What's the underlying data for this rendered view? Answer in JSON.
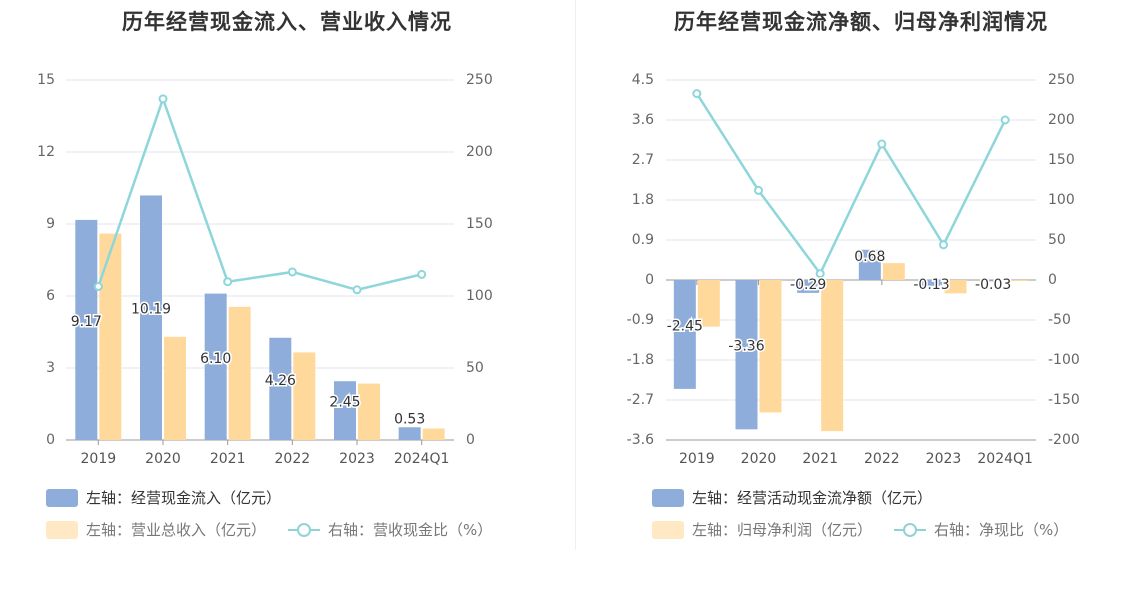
{
  "colors": {
    "blue": "#8eadda",
    "orange": "#ffd99b",
    "teal": "#8dd6da",
    "grid": "#e3e6f2",
    "axis": "#999999"
  },
  "chart_data": [
    {
      "type": "bar",
      "title": "历年经营现金流入、营业收入情况",
      "categories": [
        "2019",
        "2020",
        "2021",
        "2022",
        "2023",
        "2024Q1"
      ],
      "left_axis": {
        "ylim": [
          0,
          15
        ],
        "ticks": [
          "0",
          "3",
          "6",
          "9",
          "12",
          "15"
        ]
      },
      "right_axis": {
        "ylim": [
          0,
          250
        ],
        "ticks": [
          "0",
          "50",
          "100",
          "150",
          "200",
          "250"
        ]
      },
      "series": [
        {
          "name": "左轴：经营现金流入（亿元）",
          "type": "bar",
          "axis": "left",
          "color": "#8eadda",
          "values": [
            9.17,
            10.19,
            6.1,
            4.26,
            2.45,
            0.53
          ],
          "labels": [
            "9.17",
            "10.19",
            "6.10",
            "4.26",
            "2.45",
            "0.53"
          ]
        },
        {
          "name": "左轴：营业总收入（亿元）",
          "type": "bar",
          "axis": "left",
          "color": "#ffd99b",
          "values": [
            8.6,
            4.3,
            5.55,
            3.65,
            2.35,
            0.48
          ]
        },
        {
          "name": "右轴：营收现金比（%）",
          "type": "line",
          "axis": "right",
          "color": "#8dd6da",
          "values": [
            106.6,
            236.9,
            109.9,
            116.7,
            104.3,
            115.0
          ]
        }
      ],
      "legend_position": "bottom-left"
    },
    {
      "type": "bar",
      "title": "历年经营现金流净额、归母净利润情况",
      "categories": [
        "2019",
        "2020",
        "2021",
        "2022",
        "2023",
        "2024Q1"
      ],
      "left_axis": {
        "ylim": [
          -3.6,
          4.5
        ],
        "ticks": [
          "-3.6",
          "-2.7",
          "-1.8",
          "-0.9",
          "0",
          "0.9",
          "1.8",
          "2.7",
          "3.6",
          "4.5"
        ]
      },
      "right_axis": {
        "ylim": [
          -200,
          250
        ],
        "ticks": [
          "-200",
          "-150",
          "-100",
          "-50",
          "0",
          "50",
          "100",
          "150",
          "200",
          "250"
        ]
      },
      "series": [
        {
          "name": "左轴：经营活动现金流净额（亿元）",
          "type": "bar",
          "axis": "left",
          "color": "#8eadda",
          "values": [
            -2.45,
            -3.36,
            -0.29,
            0.68,
            -0.13,
            -0.03
          ],
          "labels": [
            "-2.45",
            "-3.36",
            "-0.29",
            "0.68",
            "-0.13",
            "-0.03"
          ]
        },
        {
          "name": "左轴：归母净利润（亿元）",
          "type": "bar",
          "axis": "left",
          "color": "#ffd99b",
          "values": [
            -1.05,
            -2.98,
            -3.4,
            0.38,
            -0.3,
            -0.02
          ]
        },
        {
          "name": "右轴：净现比（%）",
          "type": "line",
          "axis": "right",
          "color": "#8dd6da",
          "values": [
            233,
            112,
            8,
            170,
            44,
            200
          ]
        }
      ],
      "legend_position": "bottom-left"
    }
  ]
}
